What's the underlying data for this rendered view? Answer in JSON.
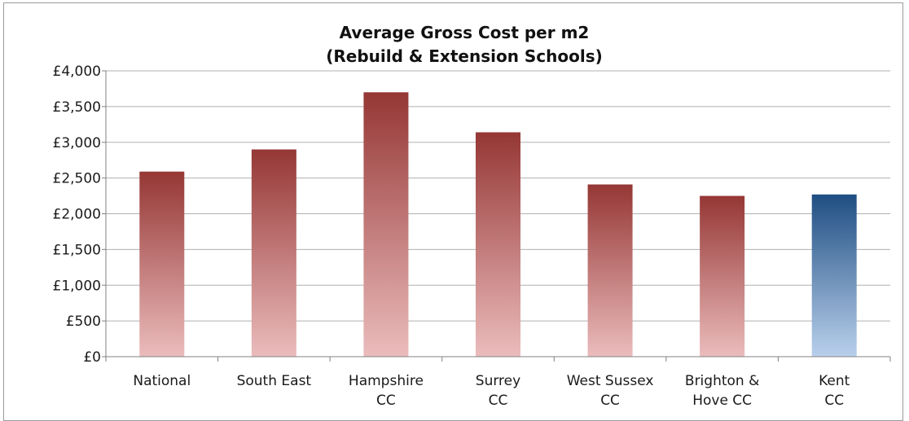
{
  "chart_data": {
    "type": "bar",
    "title": "Average Gross Cost per m2",
    "subtitle": "(Rebuild & Extension Schools)",
    "categories": [
      [
        "National"
      ],
      [
        "South East"
      ],
      [
        "Hampshire",
        "CC"
      ],
      [
        "Surrey",
        "CC"
      ],
      [
        "West Sussex",
        "CC"
      ],
      [
        "Brighton &",
        "Hove CC"
      ],
      [
        "Kent",
        "CC"
      ]
    ],
    "values": [
      2590,
      2900,
      3700,
      3140,
      2410,
      2250,
      2270
    ],
    "highlight_index": 6,
    "ylim": [
      0,
      4000
    ],
    "yticks": [
      0,
      500,
      1000,
      1500,
      2000,
      2500,
      3000,
      3500,
      4000
    ],
    "ytick_labels": [
      "£0",
      "£500",
      "£1,000",
      "£1,500",
      "£2,000",
      "£2,500",
      "£3,000",
      "£3,500",
      "£4,000"
    ],
    "xlabel": "",
    "ylabel": "",
    "grid": true,
    "legend": "none",
    "colors": {
      "bar_top": "#953735",
      "bar_bottom": "#ebbcbc",
      "highlight_top": "#1f4e82",
      "highlight_bottom": "#b9d0ec",
      "grid": "#b0b0b0",
      "axis": "#808080"
    }
  }
}
